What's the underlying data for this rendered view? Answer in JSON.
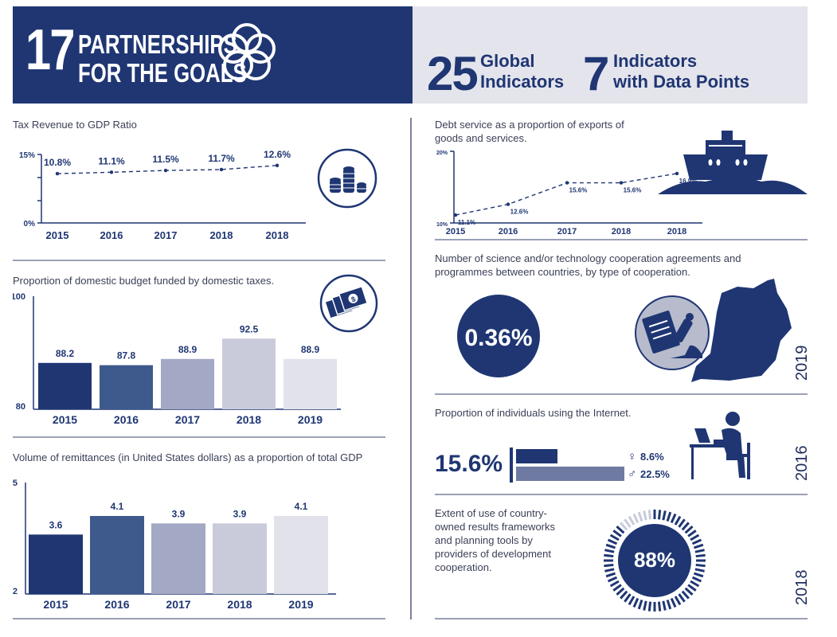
{
  "header": {
    "goal_number": "17",
    "goal_line1": "PARTNERSHIPS",
    "goal_line2": "FOR THE GOALS",
    "global_count": "25",
    "global_label1": "Global",
    "global_label2": "Indicators",
    "data_count": "7",
    "data_label1": "Indicators",
    "data_label2": "with Data Points"
  },
  "colors": {
    "navy": "#1f3673",
    "bar_shades": [
      "#1f3673",
      "#3e5a8c",
      "#a3a8c4",
      "#c9cbda",
      "#e2e3ea"
    ],
    "header_right_bg": "#e4e4ec"
  },
  "icons": [
    "coins-icon",
    "money-icon",
    "ship-icon",
    "uganda-map-icon",
    "microscope-icon",
    "computer-user-icon",
    "female-icon",
    "male-icon"
  ],
  "chart_data": [
    {
      "id": "tax",
      "type": "line",
      "title": "Tax Revenue to GDP Ratio",
      "categories": [
        "2015",
        "2016",
        "2017",
        "2018",
        "2018"
      ],
      "values": [
        10.8,
        11.1,
        11.5,
        11.7,
        12.6
      ],
      "labels": [
        "10.8%",
        "11.1%",
        "11.5%",
        "11.7%",
        "12.6%"
      ],
      "ytick_labels": [
        "15%",
        "0%"
      ],
      "ylim": [
        0,
        15
      ]
    },
    {
      "id": "budget",
      "type": "bar",
      "title": "Proportion of domestic budget funded by domestic taxes.",
      "categories": [
        "2015",
        "2016",
        "2017",
        "2018",
        "2019"
      ],
      "values": [
        88.2,
        87.8,
        88.9,
        92.5,
        88.9
      ],
      "labels": [
        "88.2",
        "87.8",
        "88.9",
        "92.5",
        "88.9"
      ],
      "ytick_labels": [
        "100",
        "80"
      ],
      "ylim": [
        80,
        100
      ]
    },
    {
      "id": "remit",
      "type": "bar",
      "title": "Volume of remittances (in United States dollars) as a proportion of total GDP",
      "categories": [
        "2015",
        "2016",
        "2017",
        "2018",
        "2019"
      ],
      "values": [
        3.6,
        4.1,
        3.9,
        3.9,
        4.1
      ],
      "labels": [
        "3.6",
        "4.1",
        "3.9",
        "3.9",
        "4.1"
      ],
      "ytick_labels": [
        "5",
        "2"
      ],
      "ylim": [
        2,
        5
      ]
    },
    {
      "id": "debt",
      "type": "line",
      "title": "Debt service as a proportion of exports of goods and services.",
      "categories": [
        "2015",
        "2016",
        "2017",
        "2018",
        "2018"
      ],
      "values": [
        11.1,
        12.6,
        15.6,
        15.6,
        16.9
      ],
      "labels": [
        "11.1%",
        "12.6%",
        "15.6%",
        "15.6%",
        "16.9%"
      ],
      "ytick_labels": [
        "20%",
        "10%"
      ],
      "ylim": [
        10,
        20
      ]
    },
    {
      "id": "internet",
      "type": "bar",
      "title": "Proportion of individuals using the Internet.",
      "series": [
        {
          "name": "♀",
          "value": 8.6,
          "label": "8.6%"
        },
        {
          "name": "♂",
          "value": 22.5,
          "label": "22.5%"
        }
      ]
    }
  ],
  "science": {
    "title": "Number of science and/or technology cooperation agreements and programmes between countries, by type of cooperation.",
    "value": "0.36%",
    "year": "2019"
  },
  "internet": {
    "total": "15.6%",
    "female_symbol": "♀",
    "male_symbol": "♂",
    "year": "2016"
  },
  "frameworks": {
    "title_lines": [
      "Extent of use of country-",
      "owned results frameworks",
      "and planning tools by",
      "providers of development",
      "cooperation."
    ],
    "value": "88%",
    "percent": 88,
    "year": "2018"
  }
}
